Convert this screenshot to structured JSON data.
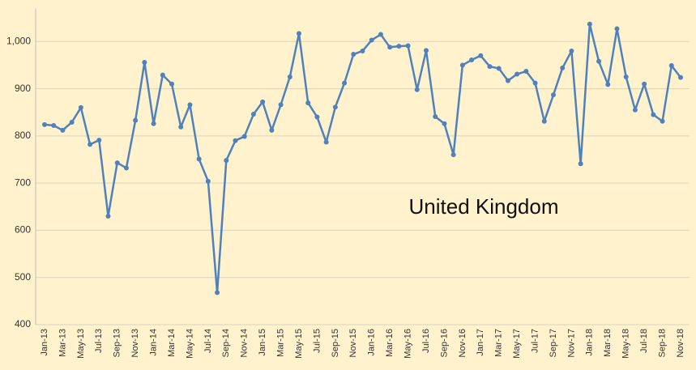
{
  "chart_data": {
    "type": "line",
    "annotation": "United Kingdom",
    "categories": [
      "Jan-13",
      null,
      "Mar-13",
      null,
      "May-13",
      null,
      "Jul-13",
      null,
      "Sep-13",
      null,
      "Nov-13",
      null,
      "Jan-14",
      null,
      "Mar-14",
      null,
      "May-14",
      null,
      "Jul-14",
      null,
      "Sep-14",
      null,
      "Nov-14",
      null,
      "Jan-15",
      null,
      "Mar-15",
      null,
      "May-15",
      null,
      "Jul-15",
      null,
      "Sep-15",
      null,
      "Nov-15",
      null,
      "Jan-16",
      null,
      "Mar-16",
      null,
      "May-16",
      null,
      "Jul-16",
      null,
      "Sep-16",
      null,
      "Nov-16",
      null,
      "Jan-17",
      null,
      "Mar-17",
      null,
      "May-17",
      null,
      "Jul-17",
      null,
      "Sep-17",
      null,
      "Nov-17",
      null,
      "Jan-18",
      null,
      "Mar-18",
      null,
      "May-18",
      null,
      "Jul-18",
      null,
      "Sep-18",
      null,
      "Nov-18"
    ],
    "series": [
      {
        "name": "United Kingdom",
        "color": "#4f81bd",
        "values": [
          824,
          822,
          812,
          829,
          860,
          782,
          791,
          630,
          743,
          732,
          833,
          956,
          826,
          929,
          910,
          819,
          866,
          751,
          704,
          468,
          748,
          790,
          799,
          846,
          872,
          812,
          866,
          925,
          1017,
          870,
          840,
          787,
          861,
          912,
          973,
          980,
          1003,
          1015,
          988,
          990,
          991,
          898,
          981,
          841,
          826,
          760,
          950,
          961,
          970,
          947,
          943,
          917,
          931,
          937,
          912,
          831,
          887,
          944,
          980,
          741,
          1037,
          958,
          909,
          1027,
          925,
          855,
          910,
          845,
          831,
          949,
          924
        ]
      }
    ],
    "ylim": [
      400,
      1070
    ],
    "yticks": [
      400,
      500,
      600,
      700,
      800,
      900,
      {
        "value": 1000,
        "label": "1,000"
      }
    ],
    "grid": true
  }
}
